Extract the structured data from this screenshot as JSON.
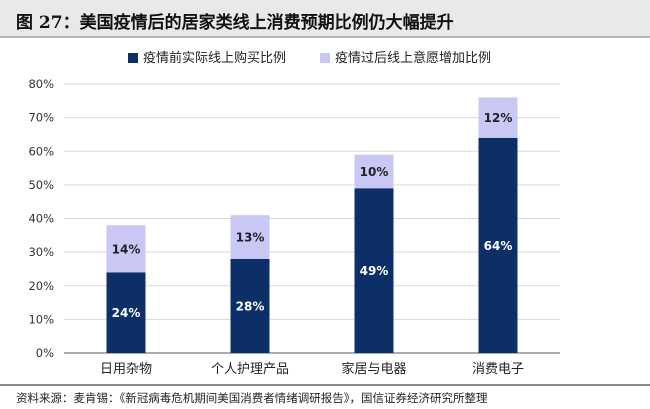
{
  "title": "图 27：美国疫情后的居家类线上消费预期比例仍大幅提升",
  "source": "资料来源：麦肯锡：《新冠病毒危机期间美国消费者情绪调研报告》，国信证券经济研究所整理",
  "colors": {
    "before": "#0b2f66",
    "after": "#c9c8f4",
    "grid": "#d9d9d9",
    "axis": "#595959"
  },
  "chart_data": {
    "type": "bar",
    "stacked": true,
    "categories": [
      "日用杂物",
      "个人护理产品",
      "家居与电器",
      "消费电子"
    ],
    "series": [
      {
        "name": "疫情前实际线上购买比例",
        "values": [
          24,
          28,
          49,
          64
        ],
        "labels": [
          "24%",
          "28%",
          "49%",
          "64%"
        ]
      },
      {
        "name": "疫情过后线上意愿增加比例",
        "values": [
          14,
          13,
          10,
          12
        ],
        "labels": [
          "14%",
          "13%",
          "10%",
          "12%"
        ]
      }
    ],
    "ylim": [
      0,
      80
    ],
    "yticks": [
      "0%",
      "10%",
      "20%",
      "30%",
      "40%",
      "50%",
      "60%",
      "70%",
      "80%"
    ],
    "grid": true,
    "legend": "top-center"
  }
}
